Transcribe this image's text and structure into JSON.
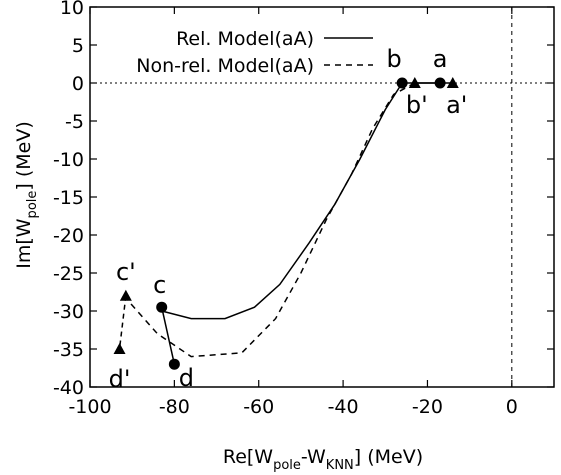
{
  "chart_data": {
    "type": "line",
    "xlim": [
      -100,
      10
    ],
    "ylim": [
      -40,
      10
    ],
    "x_ticks": [
      -100,
      -80,
      -60,
      -40,
      -20,
      0
    ],
    "y_ticks": [
      10,
      5,
      0,
      -5,
      -10,
      -15,
      -20,
      -25,
      -30,
      -35,
      -40
    ],
    "x_tick_labels": [
      "-100",
      "-80",
      "-60",
      "-40",
      "-20",
      "0"
    ],
    "y_tick_labels": [
      "10",
      "5",
      "0",
      "-5",
      "-10",
      "-15",
      "-20",
      "-25",
      "-30",
      "-35",
      "-40"
    ],
    "xlabel": {
      "pre": "Re[W",
      "sub1": "pole",
      "mid": "-W",
      "sub2": "KNN",
      "post": "] (MeV)"
    },
    "ylabel": {
      "pre": "Im[W",
      "sub": "pole",
      "post": "] (MeV)"
    },
    "reference_lines": {
      "y_zero": "dotted",
      "x_zero": "dashed"
    },
    "legend": {
      "placement": "top-left"
    },
    "series": [
      {
        "name": "Rel. Model(aA)",
        "style": "solid",
        "x": [
          -83,
          -76,
          -68,
          -61,
          -55,
          -48,
          -42,
          -36,
          -30,
          -26
        ],
        "y": [
          -30,
          -31,
          -31,
          -29.5,
          -26.5,
          -21,
          -16,
          -10,
          -3.5,
          0
        ]
      },
      {
        "name": "Non-rel. Model(aA)",
        "style": "dashed",
        "x": [
          -92,
          -84,
          -76,
          -64,
          -56,
          -50,
          -44,
          -38,
          -33,
          -28,
          -23
        ],
        "y": [
          -28,
          -33,
          -36,
          -35.5,
          -31,
          -25,
          -18,
          -12,
          -6,
          -1.5,
          0
        ]
      }
    ],
    "segments": [
      {
        "style": "solid",
        "from": "c",
        "to": "d"
      },
      {
        "style": "dashed",
        "from": "c'",
        "to": "d'"
      },
      {
        "style": "solid",
        "from": "b",
        "to": "a"
      },
      {
        "style": "solid",
        "from": "b'",
        "to": "a'"
      }
    ],
    "points": [
      {
        "label": "a",
        "marker": "circle",
        "x": -17,
        "y": 0
      },
      {
        "label": "b",
        "marker": "circle",
        "x": -26,
        "y": 0
      },
      {
        "label": "c",
        "marker": "circle",
        "x": -83,
        "y": -29.5
      },
      {
        "label": "d",
        "marker": "circle",
        "x": -80,
        "y": -37
      },
      {
        "label": "a'",
        "marker": "triangle",
        "x": -14,
        "y": 0
      },
      {
        "label": "b'",
        "marker": "triangle",
        "x": -23,
        "y": 0
      },
      {
        "label": "c'",
        "marker": "triangle",
        "x": -91.5,
        "y": -28
      },
      {
        "label": "d'",
        "marker": "triangle",
        "x": -93,
        "y": -35
      }
    ]
  }
}
